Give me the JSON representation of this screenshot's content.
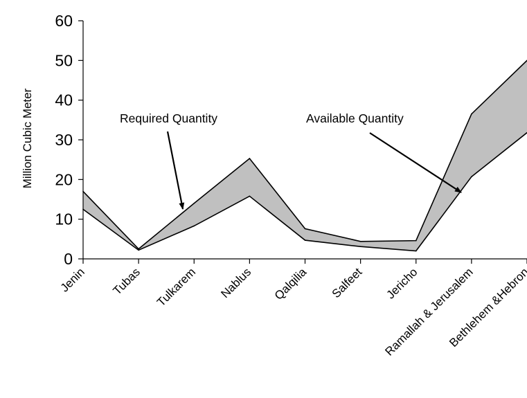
{
  "chart_data": {
    "type": "area",
    "categories": [
      "Jenin",
      "Tubas",
      "Tulkarem",
      "Nablus",
      "Qalqilia",
      "Salfeet",
      "Jericho",
      "Ramallah & Jerusalem",
      "Bethlehem &Hebron"
    ],
    "series": [
      {
        "name": "Required Quantity",
        "values": [
          17,
          2.5,
          14,
          25.3,
          7.6,
          4.4,
          4.6,
          36.5,
          50
        ]
      },
      {
        "name": "Available Quantity",
        "values": [
          12.5,
          2.2,
          8.3,
          15.8,
          4.7,
          3.1,
          2.0,
          20.7,
          31.8
        ]
      }
    ],
    "ylabel": "Million Cubic Meter",
    "xlabel": "",
    "ylim": [
      0,
      60
    ],
    "yticks": [
      "0",
      "10",
      "20",
      "30",
      "40",
      "50",
      "60"
    ],
    "fill_color": "#c0c0c0",
    "line_color": "#000000",
    "annotations": [
      {
        "text": "Required Quantity",
        "points_to": "Required Quantity"
      },
      {
        "text": "Available Quantity",
        "points_to": "Available Quantity"
      }
    ]
  }
}
